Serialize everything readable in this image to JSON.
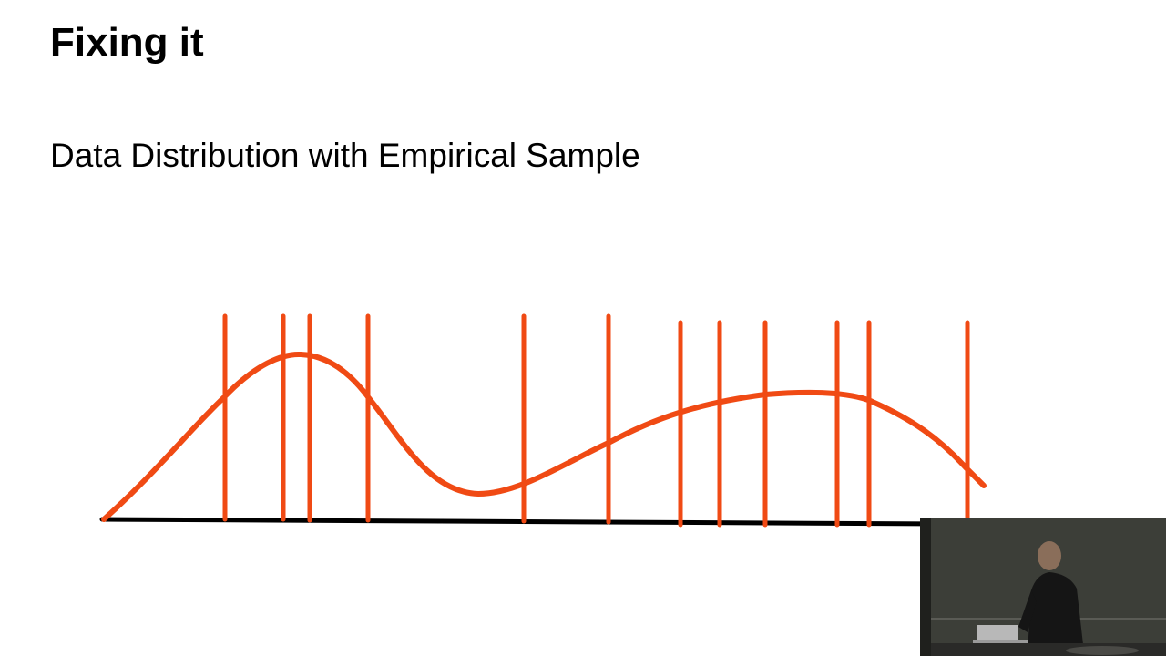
{
  "slide": {
    "title": "Fixing it",
    "subtitle": "Data Distribution with Empirical Sample"
  },
  "colors": {
    "curve": "#f04a14",
    "sample_lines": "#f04a14",
    "baseline": "#000000",
    "background": "#ffffff"
  },
  "webcam": {
    "visible": true,
    "description_icon": "presenter-video-icon"
  }
}
